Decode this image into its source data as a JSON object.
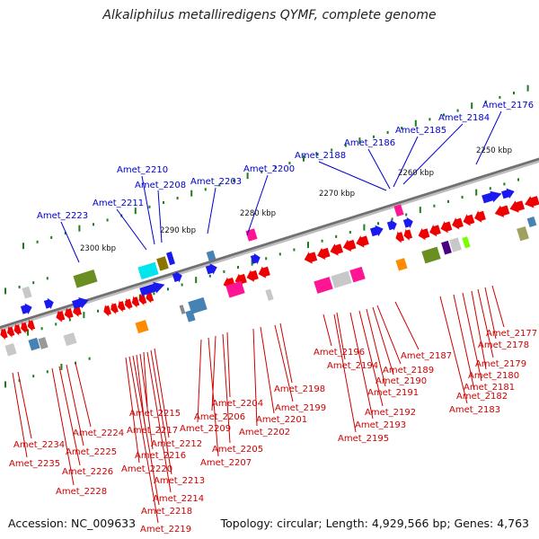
{
  "title": "Alkaliphilus metalliredigens QYMF, complete genome",
  "accession": "Accession: NC_009633",
  "topology": "Topology: circular; Length: 4,929,566 bp; Genes: 4,763",
  "colors": {
    "upper_labels": "#0000cc",
    "lower_labels": "#cc0000",
    "backbone": "#8c8c8c",
    "ticks": "#1e7b1e"
  },
  "scale_labels": [
    "2250 kbp",
    "2260 kbp",
    "2270 kbp",
    "2280 kbp",
    "2290 kbp",
    "2300 kbp"
  ],
  "upper_genes": [
    "Amet_2176",
    "Amet_2184",
    "Amet_2185",
    "Amet_2186",
    "Amet_2188",
    "Amet_2200",
    "Amet_2203",
    "Amet_2208",
    "Amet_2210",
    "Amet_2211",
    "Amet_2223"
  ],
  "lower_genes": [
    "Amet_2177",
    "Amet_2178",
    "Amet_2179",
    "Amet_2180",
    "Amet_2181",
    "Amet_2182",
    "Amet_2183",
    "Amet_2187",
    "Amet_2189",
    "Amet_2190",
    "Amet_2191",
    "Amet_2192",
    "Amet_2193",
    "Amet_2194",
    "Amet_2195",
    "Amet_2196",
    "Amet_2198",
    "Amet_2199",
    "Amet_2201",
    "Amet_2202",
    "Amet_2204",
    "Amet_2205",
    "Amet_2206",
    "Amet_2207",
    "Amet_2209",
    "Amet_2212",
    "Amet_2213",
    "Amet_2214",
    "Amet_2215",
    "Amet_2216",
    "Amet_2217",
    "Amet_2218",
    "Amet_2219",
    "Amet_2220",
    "Amet_2224",
    "Amet_2225",
    "Amet_2226",
    "Amet_2228",
    "Amet_2234",
    "Amet_2235"
  ]
}
